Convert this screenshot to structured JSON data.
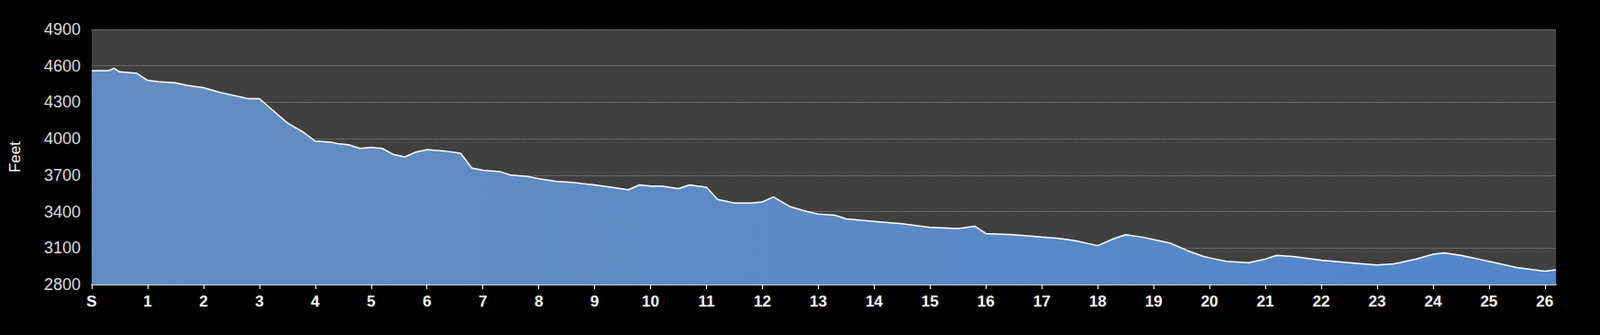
{
  "chart_data": {
    "type": "area",
    "y_label": "Feet",
    "x": [
      0,
      0.3,
      0.4,
      0.5,
      0.8,
      1.0,
      1.2,
      1.5,
      1.7,
      2.0,
      2.3,
      2.5,
      2.8,
      3.0,
      3.2,
      3.5,
      3.8,
      4.0,
      4.3,
      4.4,
      4.6,
      4.8,
      5.0,
      5.2,
      5.4,
      5.6,
      5.8,
      6.0,
      6.3,
      6.6,
      6.8,
      7.0,
      7.3,
      7.5,
      7.8,
      8.0,
      8.3,
      8.6,
      8.8,
      9.0,
      9.3,
      9.6,
      9.8,
      10.0,
      10.2,
      10.5,
      10.7,
      11.0,
      11.2,
      11.5,
      11.8,
      12.0,
      12.2,
      12.5,
      12.8,
      13.0,
      13.3,
      13.5,
      14.0,
      14.5,
      15.0,
      15.5,
      15.8,
      16.0,
      16.5,
      17.0,
      17.3,
      17.6,
      18.0,
      18.3,
      18.5,
      18.8,
      19.0,
      19.3,
      19.6,
      19.9,
      20.0,
      20.3,
      20.7,
      21.0,
      21.2,
      21.5,
      22.0,
      22.5,
      23.0,
      23.3,
      23.7,
      24.0,
      24.2,
      24.5,
      25.0,
      25.5,
      26.0,
      26.2
    ],
    "values": [
      4560,
      4560,
      4580,
      4550,
      4540,
      4480,
      4470,
      4460,
      4440,
      4420,
      4380,
      4360,
      4330,
      4330,
      4250,
      4130,
      4050,
      3980,
      3970,
      3960,
      3950,
      3920,
      3930,
      3920,
      3870,
      3850,
      3890,
      3910,
      3900,
      3880,
      3760,
      3740,
      3730,
      3700,
      3690,
      3670,
      3650,
      3640,
      3630,
      3620,
      3600,
      3580,
      3620,
      3610,
      3610,
      3590,
      3620,
      3600,
      3500,
      3470,
      3470,
      3480,
      3520,
      3440,
      3400,
      3380,
      3370,
      3340,
      3320,
      3300,
      3270,
      3260,
      3280,
      3220,
      3210,
      3190,
      3180,
      3160,
      3120,
      3180,
      3210,
      3190,
      3170,
      3140,
      3080,
      3030,
      3020,
      2990,
      2980,
      3010,
      3040,
      3030,
      3000,
      2980,
      2960,
      2970,
      3010,
      3050,
      3060,
      3040,
      2990,
      2940,
      2910,
      2920
    ],
    "color": "#4a7ab8",
    "xlim": [
      0,
      26.2
    ],
    "xticks": [
      {
        "value": 0,
        "label": "S"
      },
      1,
      2,
      3,
      4,
      5,
      6,
      7,
      8,
      9,
      10,
      11,
      12,
      13,
      14,
      15,
      16,
      17,
      18,
      19,
      20,
      21,
      22,
      23,
      24,
      25,
      26
    ],
    "ylim": [
      2800,
      4900
    ],
    "yticks": [
      2800,
      3100,
      3400,
      3700,
      4000,
      4300,
      4600,
      4900
    ],
    "grid": true
  }
}
